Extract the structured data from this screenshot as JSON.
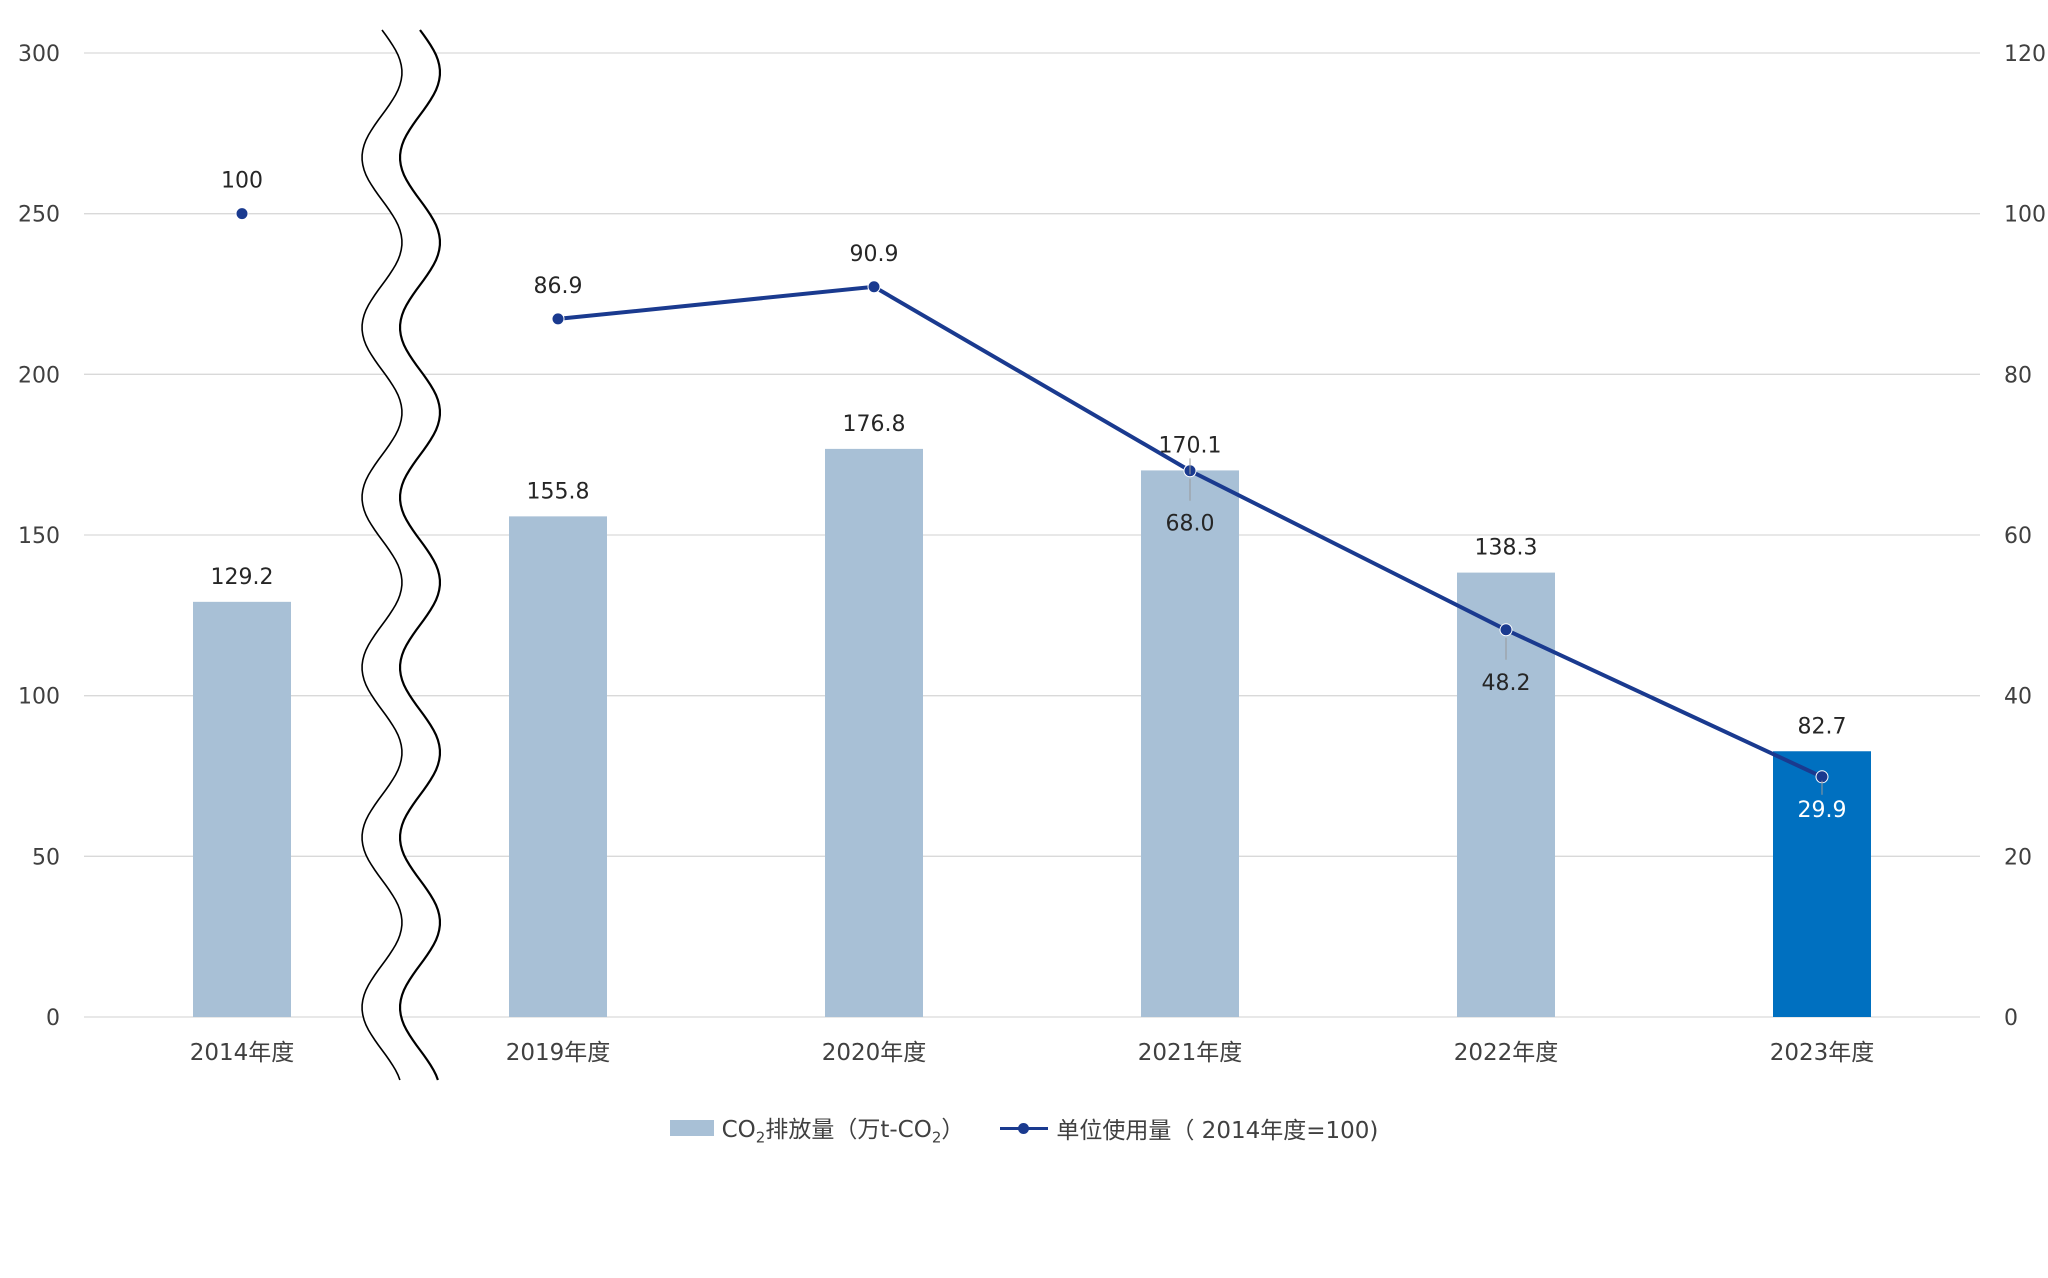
{
  "chart_data": {
    "type": "bar",
    "categories": [
      "2014年度",
      "2019年度",
      "2020年度",
      "2021年度",
      "2022年度",
      "2023年度"
    ],
    "series": [
      {
        "name": "CO₂排放量（万t-CO₂）",
        "type": "bar",
        "axis": "left",
        "values": [
          129.2,
          155.8,
          176.8,
          170.1,
          138.3,
          82.7
        ],
        "labels": [
          "129.2",
          "155.8",
          "176.8",
          "170.1",
          "138.3",
          "82.7"
        ],
        "color": "#a8c0d6",
        "highlight_color": "#0070c0",
        "highlight_index": 5
      },
      {
        "name": "单位使用量（2014年度=100)",
        "type": "line",
        "axis": "right",
        "values": [
          100,
          86.9,
          90.9,
          68.0,
          48.2,
          29.9
        ],
        "labels": [
          "100",
          "86.9",
          "90.9",
          "68.0",
          "48.2",
          "29.9"
        ],
        "color": "#1a3a8f",
        "break_after_index": 0
      }
    ],
    "y_left": {
      "min": 0,
      "max": 300,
      "ticks": [
        "0",
        "50",
        "100",
        "150",
        "200",
        "250",
        "300"
      ]
    },
    "y_right": {
      "min": 0,
      "max": 120,
      "ticks": [
        "0",
        "20",
        "40",
        "60",
        "80",
        "100",
        "120"
      ]
    },
    "axis_break": {
      "between": [
        "2014年度",
        "2019年度"
      ]
    },
    "grid": true,
    "legend_position": "bottom",
    "legend": {
      "bar_prefix": "CO",
      "bar_sub": "2",
      "bar_mid": "排放量（万t-CO",
      "bar_sub2": "2",
      "bar_suffix": "）",
      "line_label": "单位使用量（ 2014年度=100)"
    }
  }
}
